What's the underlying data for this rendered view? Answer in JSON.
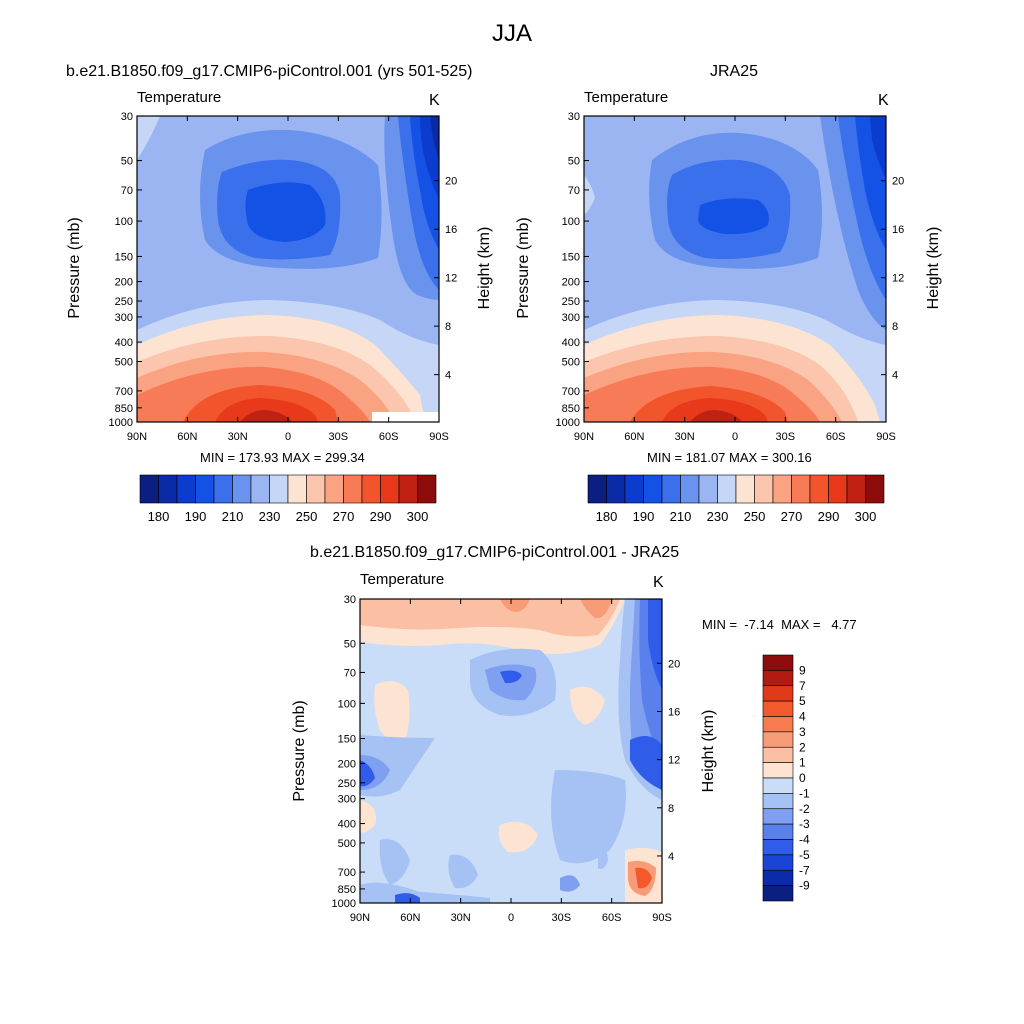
{
  "figure_title": "JJA",
  "panels": [
    {
      "title": "b.e21.B1850.f09_g17.CMIP6-piControl.001 (yrs 501-525)",
      "field": "Temperature",
      "units": "K",
      "ylabel_left": "Pressure (mb)",
      "ylabel_right": "Height (km)",
      "minmax": "MIN = 173.93  MAX = 299.34"
    },
    {
      "title": "JRA25",
      "field": "Temperature",
      "units": "K",
      "ylabel_left": "Pressure (mb)",
      "ylabel_right": "Height (km)",
      "minmax": "MIN = 181.07  MAX = 300.16"
    },
    {
      "title": "b.e21.B1850.f09_g17.CMIP6-piControl.001 - JRA25",
      "field": "Temperature",
      "units": "K",
      "ylabel_left": "Pressure (mb)",
      "ylabel_right": "Height (km)",
      "minmax": "MIN =  -7.14  MAX =   4.77"
    }
  ],
  "chart_data": [
    {
      "type": "heatmap",
      "panel": 0,
      "x_ticks": [
        "90N",
        "60N",
        "30N",
        "0",
        "30S",
        "60S",
        "90S"
      ],
      "y_ticks_pressure": [
        30,
        50,
        70,
        100,
        150,
        200,
        250,
        300,
        400,
        500,
        700,
        850,
        1000
      ],
      "y_ticks_height": [
        20,
        16,
        12,
        8,
        4
      ],
      "ylim_pressure": [
        1000,
        30
      ],
      "colorbar_ticks": [
        "180",
        "190",
        "210",
        "230",
        "250",
        "270",
        "290",
        "300"
      ],
      "min": 173.93,
      "max": 299.34
    },
    {
      "type": "heatmap",
      "panel": 1,
      "x_ticks": [
        "90N",
        "60N",
        "30N",
        "0",
        "30S",
        "60S",
        "90S"
      ],
      "y_ticks_pressure": [
        30,
        50,
        70,
        100,
        150,
        200,
        250,
        300,
        400,
        500,
        700,
        850,
        1000
      ],
      "y_ticks_height": [
        20,
        16,
        12,
        8,
        4
      ],
      "ylim_pressure": [
        1000,
        30
      ],
      "colorbar_ticks": [
        "180",
        "190",
        "210",
        "230",
        "250",
        "270",
        "290",
        "300"
      ],
      "min": 181.07,
      "max": 300.16
    },
    {
      "type": "heatmap",
      "panel": 2,
      "x_ticks": [
        "90N",
        "60N",
        "30N",
        "0",
        "30S",
        "60S",
        "90S"
      ],
      "y_ticks_pressure": [
        30,
        50,
        70,
        100,
        150,
        200,
        250,
        300,
        400,
        500,
        700,
        850,
        1000
      ],
      "y_ticks_height": [
        20,
        16,
        12,
        8,
        4
      ],
      "ylim_pressure": [
        1000,
        30
      ],
      "colorbar_ticks": [
        "9",
        "7",
        "5",
        "4",
        "3",
        "2",
        "1",
        "0",
        "-1",
        "-2",
        "-3",
        "-4",
        "-5",
        "-7",
        "-9"
      ],
      "min": -7.14,
      "max": 4.77
    }
  ],
  "colors": {
    "abs_scale": [
      "#0a1f80",
      "#0b2aa6",
      "#0c3ccd",
      "#1452e6",
      "#3a70eb",
      "#6a93ee",
      "#9ab5f2",
      "#c5d6f6",
      "#fde4d2",
      "#fcc5ad",
      "#f9a383",
      "#f77b57",
      "#f2552c",
      "#e8391a",
      "#bf2112",
      "#8c0b0b"
    ],
    "diff_scale": [
      "#8c0b0b",
      "#b01a12",
      "#e03a1a",
      "#f25a2c",
      "#f67b4e",
      "#f89c78",
      "#fbbfa3",
      "#fde4d2",
      "#c9dcf8",
      "#a6c1f3",
      "#7f9ff0",
      "#5a80ec",
      "#2f5ce8",
      "#1a44d8",
      "#0b2ba8",
      "#0a1f80"
    ]
  }
}
